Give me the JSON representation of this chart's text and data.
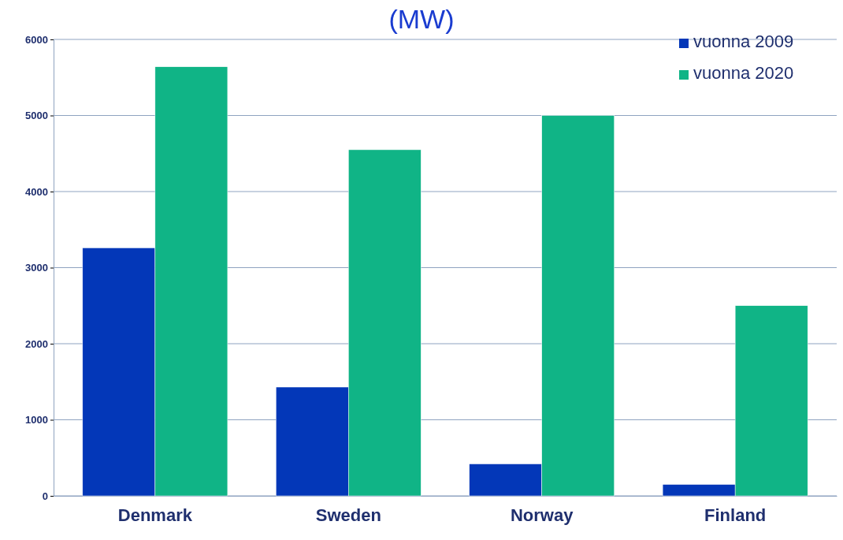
{
  "chart_data": {
    "type": "bar",
    "title": "(MW)",
    "categories": [
      "Denmark",
      "Sweden",
      "Norway",
      "Finland"
    ],
    "series": [
      {
        "name": "vuonna 2009",
        "color": "#0337b8",
        "values": [
          3260,
          1430,
          420,
          150
        ]
      },
      {
        "name": "vuonna 2020",
        "color": "#10b486",
        "values": [
          5640,
          4550,
          5000,
          2500
        ]
      }
    ],
    "ylim": [
      0,
      6000
    ],
    "yticks": [
      0,
      1000,
      2000,
      3000,
      4000,
      5000,
      6000
    ],
    "grid": "y",
    "legend": "top right"
  }
}
